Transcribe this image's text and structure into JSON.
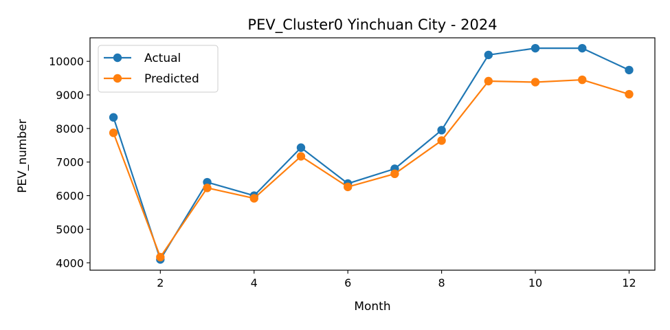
{
  "chart_data": {
    "type": "line",
    "title": "PEV_Cluster0 Yinchuan City - 2024",
    "xlabel": "Month",
    "ylabel": "PEV_number",
    "x": [
      1,
      2,
      3,
      4,
      5,
      6,
      7,
      8,
      9,
      10,
      11,
      12
    ],
    "xlim": [
      0.5,
      12.55
    ],
    "ylim": [
      3780,
      10700
    ],
    "xticks": [
      2,
      4,
      6,
      8,
      10,
      12
    ],
    "yticks": [
      4000,
      5000,
      6000,
      7000,
      8000,
      9000,
      10000
    ],
    "grid": false,
    "legend_position": "top-left",
    "series": [
      {
        "name": "Actual",
        "color": "#1f77b4",
        "values": [
          8330,
          4100,
          6400,
          6000,
          7430,
          6360,
          6800,
          7950,
          10190,
          10390,
          10390,
          9740
        ]
      },
      {
        "name": "Predicted",
        "color": "#ff7f0e",
        "values": [
          7870,
          4170,
          6230,
          5920,
          7170,
          6260,
          6650,
          7640,
          9410,
          9380,
          9450,
          9020
        ]
      }
    ]
  }
}
